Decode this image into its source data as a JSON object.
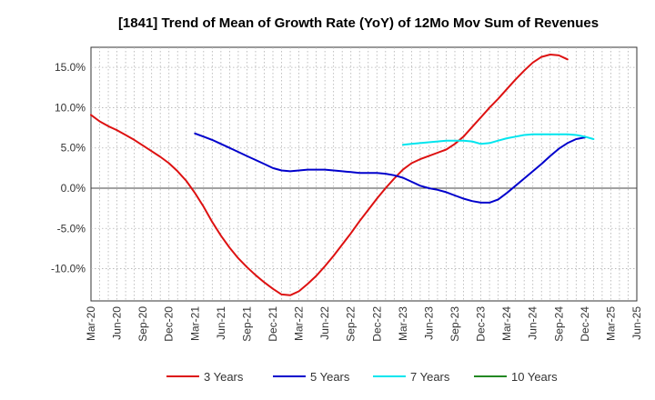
{
  "chart_data": {
    "type": "line",
    "title": "[1841]  Trend of Mean of Growth Rate (YoY) of 12Mo Mov Sum of Revenues",
    "xlabel": "",
    "ylabel": "",
    "ylim": [
      -14,
      17.5
    ],
    "yticks": [
      15,
      10,
      5,
      0,
      -5,
      -10
    ],
    "ytick_labels": [
      "15.0%",
      "10.0%",
      "5.0%",
      "0.0%",
      "-5.0%",
      "-10.0%"
    ],
    "x_start": "Mar-20",
    "x_categories": [
      "Mar-20",
      "Jun-20",
      "Sep-20",
      "Dec-20",
      "Mar-21",
      "Jun-21",
      "Sep-21",
      "Dec-21",
      "Mar-22",
      "Jun-22",
      "Sep-22",
      "Dec-22",
      "Mar-23",
      "Jun-23",
      "Sep-23",
      "Dec-23",
      "Mar-24",
      "Jun-24",
      "Sep-24",
      "Dec-24",
      "Mar-25",
      "Jun-25"
    ],
    "grid": true,
    "legend_position": "bottom",
    "series": [
      {
        "name": "3 Years",
        "color": "#dd1111",
        "start_index": 0,
        "values": [
          9.1,
          8.3,
          7.7,
          7.2,
          6.6,
          6.0,
          5.3,
          4.6,
          3.9,
          3.1,
          2.1,
          0.9,
          -0.6,
          -2.3,
          -4.2,
          -5.9,
          -7.4,
          -8.7,
          -9.8,
          -10.8,
          -11.7,
          -12.5,
          -13.2,
          -13.3,
          -12.8,
          -11.9,
          -10.9,
          -9.7,
          -8.4,
          -7.0,
          -5.6,
          -4.1,
          -2.7,
          -1.3,
          0.0,
          1.2,
          2.3,
          3.1,
          3.6,
          4.0,
          4.4,
          4.8,
          5.5,
          6.4,
          7.6,
          8.8,
          10.0,
          11.1,
          12.3,
          13.5,
          14.6,
          15.6,
          16.3,
          16.6,
          16.5,
          16.0
        ]
      },
      {
        "name": "5 Years",
        "color": "#0000cc",
        "start_index": 12,
        "values": [
          6.8,
          6.4,
          6.0,
          5.5,
          5.0,
          4.5,
          4.0,
          3.5,
          3.0,
          2.5,
          2.2,
          2.1,
          2.2,
          2.3,
          2.3,
          2.3,
          2.2,
          2.1,
          2.0,
          1.9,
          1.9,
          1.9,
          1.8,
          1.6,
          1.3,
          0.8,
          0.3,
          0.0,
          -0.2,
          -0.5,
          -0.9,
          -1.3,
          -1.6,
          -1.8,
          -1.8,
          -1.4,
          -0.6,
          0.3,
          1.2,
          2.1,
          3.0,
          4.0,
          4.9,
          5.6,
          6.1,
          6.3
        ]
      },
      {
        "name": "7 Years",
        "color": "#00e5ee",
        "start_index": 36,
        "values": [
          5.4,
          5.5,
          5.6,
          5.7,
          5.8,
          5.9,
          5.9,
          5.9,
          5.8,
          5.5,
          5.6,
          5.9,
          6.2,
          6.4,
          6.6,
          6.7,
          6.7,
          6.7,
          6.7,
          6.7,
          6.6,
          6.4,
          6.1
        ]
      },
      {
        "name": "10 Years",
        "color": "#228822",
        "start_index": 0,
        "values": []
      }
    ]
  }
}
